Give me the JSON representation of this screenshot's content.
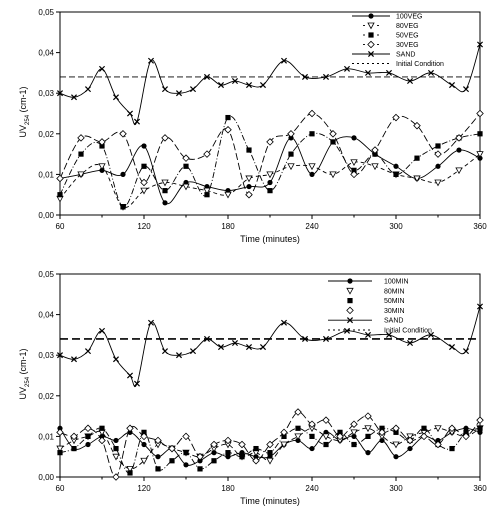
{
  "chart_data": [
    {
      "type": "line",
      "xlabel": "Time (minutes)",
      "ylabel_main": "UV",
      "ylabel_sub": "254",
      "ylabel_unit": " (cm-1)",
      "xticks": [
        60,
        120,
        180,
        240,
        300,
        360
      ],
      "yticks": [
        "0,00",
        "0,01",
        "0,02",
        "0,03",
        "0,04",
        "0,05"
      ],
      "xlim": [
        60,
        360
      ],
      "ylim": [
        0,
        0.05
      ],
      "initial_condition": 0.034,
      "series": [
        {
          "name": "100VEG",
          "marker": "circle",
          "dash": "",
          "x": [
            60,
            75,
            90,
            105,
            120,
            135,
            150,
            165,
            180,
            195,
            210,
            225,
            240,
            255,
            270,
            285,
            300,
            315,
            330,
            345,
            360
          ],
          "values": [
            0.009,
            0.01,
            0.011,
            0.01,
            0.017,
            0.003,
            0.008,
            0.007,
            0.006,
            0.007,
            0.008,
            0.019,
            0.01,
            0.018,
            0.019,
            0.015,
            0.012,
            0.009,
            0.012,
            0.016,
            0.014
          ]
        },
        {
          "name": "80VEG",
          "marker": "triangle",
          "dash": "4,3",
          "x": [
            60,
            75,
            90,
            105,
            120,
            135,
            150,
            165,
            180,
            195,
            210,
            225,
            240,
            255,
            270,
            285,
            300,
            315,
            330,
            345,
            360
          ],
          "values": [
            0.004,
            0.01,
            0.012,
            0.002,
            0.006,
            0.008,
            0.007,
            0.006,
            0.005,
            0.009,
            0.01,
            0.012,
            0.012,
            0.01,
            0.013,
            0.012,
            0.01,
            0.009,
            0.008,
            0.011,
            0.015
          ]
        },
        {
          "name": "50VEG",
          "marker": "square",
          "dash": "6,2,1,2",
          "x": [
            60,
            75,
            90,
            105,
            120,
            135,
            150,
            165,
            180,
            195,
            210,
            225,
            240,
            255,
            270,
            285,
            300,
            315,
            330,
            345,
            360
          ],
          "values": [
            0.005,
            0.015,
            0.017,
            0.002,
            0.012,
            0.006,
            0.012,
            0.005,
            0.024,
            0.016,
            0.006,
            0.015,
            0.02,
            0.018,
            0.011,
            0.015,
            0.01,
            0.014,
            0.017,
            0.019,
            0.02
          ]
        },
        {
          "name": "30VEG",
          "marker": "diamond",
          "dash": "7,3",
          "x": [
            60,
            75,
            90,
            105,
            120,
            135,
            150,
            165,
            180,
            195,
            210,
            225,
            240,
            255,
            270,
            285,
            300,
            315,
            330,
            345,
            360
          ],
          "values": [
            0.009,
            0.019,
            0.018,
            0.02,
            0.008,
            0.019,
            0.014,
            0.015,
            0.021,
            0.005,
            0.018,
            0.02,
            0.025,
            0.02,
            0.01,
            0.016,
            0.024,
            0.022,
            0.015,
            0.019,
            0.025
          ]
        },
        {
          "name": "SAND",
          "marker": "x",
          "dash": "",
          "x": [
            60,
            70,
            80,
            90,
            100,
            110,
            115,
            125,
            135,
            145,
            155,
            165,
            175,
            185,
            195,
            205,
            220,
            235,
            250,
            265,
            280,
            295,
            310,
            325,
            340,
            350,
            360
          ],
          "values": [
            0.03,
            0.029,
            0.031,
            0.036,
            0.029,
            0.025,
            0.023,
            0.038,
            0.031,
            0.03,
            0.031,
            0.034,
            0.032,
            0.033,
            0.032,
            0.032,
            0.038,
            0.034,
            0.034,
            0.036,
            0.035,
            0.035,
            0.033,
            0.035,
            0.032,
            0.031,
            0.042
          ]
        }
      ],
      "legend": [
        "100VEG",
        "80VEG",
        "50VEG",
        "30VEG",
        "SAND",
        "Initial Condition"
      ]
    },
    {
      "type": "line",
      "xlabel": "Time (minutes)",
      "ylabel_main": "UV",
      "ylabel_sub": "254",
      "ylabel_unit": " (cm-1)",
      "xticks": [
        60,
        120,
        180,
        240,
        300,
        360
      ],
      "yticks": [
        "0,00",
        "0,01",
        "0,02",
        "0,03",
        "0,04",
        "0,05"
      ],
      "xlim": [
        60,
        360
      ],
      "ylim": [
        0,
        0.05
      ],
      "initial_condition": 0.034,
      "series": [
        {
          "name": "100MIN",
          "marker": "circle",
          "dash": "",
          "x": [
            60,
            70,
            80,
            90,
            100,
            110,
            120,
            130,
            140,
            150,
            160,
            170,
            180,
            190,
            200,
            210,
            220,
            230,
            240,
            250,
            260,
            270,
            280,
            290,
            300,
            310,
            320,
            330,
            340,
            350,
            360
          ],
          "values": [
            0.012,
            0.007,
            0.008,
            0.01,
            0.009,
            0.011,
            0.008,
            0.005,
            0.007,
            0.003,
            0.004,
            0.006,
            0.005,
            0.006,
            0.005,
            0.005,
            0.008,
            0.009,
            0.007,
            0.011,
            0.009,
            0.01,
            0.006,
            0.009,
            0.005,
            0.007,
            0.01,
            0.009,
            0.011,
            0.012,
            0.011
          ]
        },
        {
          "name": "80MIN",
          "marker": "triangle",
          "dash": "5,3",
          "x": [
            60,
            70,
            80,
            90,
            100,
            110,
            120,
            130,
            140,
            150,
            160,
            170,
            180,
            190,
            200,
            210,
            220,
            230,
            240,
            250,
            260,
            270,
            280,
            290,
            300,
            310,
            320,
            330,
            340,
            350,
            360
          ],
          "values": [
            0.007,
            0.009,
            0.01,
            0.011,
            0.005,
            0.002,
            0.004,
            0.008,
            0.007,
            0.006,
            0.005,
            0.007,
            0.008,
            0.005,
            0.006,
            0.004,
            0.008,
            0.01,
            0.012,
            0.01,
            0.009,
            0.011,
            0.012,
            0.01,
            0.008,
            0.01,
            0.011,
            0.012,
            0.011,
            0.01,
            0.012
          ]
        },
        {
          "name": "50MIN",
          "marker": "square",
          "dash": "6,2,1,2",
          "x": [
            60,
            70,
            80,
            90,
            100,
            110,
            120,
            130,
            140,
            150,
            160,
            170,
            180,
            190,
            200,
            210,
            220,
            230,
            240,
            250,
            260,
            270,
            280,
            290,
            300,
            310,
            320,
            330,
            340,
            350,
            360
          ],
          "values": [
            0.006,
            0.007,
            0.01,
            0.012,
            0.007,
            0.001,
            0.011,
            0.002,
            0.004,
            0.006,
            0.002,
            0.004,
            0.006,
            0.005,
            0.007,
            0.006,
            0.01,
            0.012,
            0.01,
            0.008,
            0.011,
            0.008,
            0.01,
            0.012,
            0.011,
            0.009,
            0.012,
            0.008,
            0.007,
            0.011,
            0.012
          ]
        },
        {
          "name": "30MIN",
          "marker": "diamond",
          "dash": "8,3",
          "x": [
            60,
            70,
            80,
            90,
            100,
            110,
            120,
            130,
            140,
            150,
            160,
            170,
            180,
            190,
            200,
            210,
            220,
            230,
            240,
            250,
            260,
            270,
            280,
            290,
            300,
            310,
            320,
            330,
            340,
            350,
            360
          ],
          "values": [
            0.011,
            0.01,
            0.012,
            0.009,
            0.0,
            0.012,
            0.01,
            0.009,
            0.007,
            0.01,
            0.005,
            0.008,
            0.009,
            0.008,
            0.004,
            0.008,
            0.011,
            0.016,
            0.013,
            0.014,
            0.01,
            0.013,
            0.015,
            0.011,
            0.012,
            0.009,
            0.01,
            0.008,
            0.012,
            0.01,
            0.014
          ]
        },
        {
          "name": "SAND",
          "marker": "x",
          "dash": "",
          "x": [
            60,
            70,
            80,
            90,
            100,
            110,
            115,
            125,
            135,
            145,
            155,
            165,
            175,
            185,
            195,
            205,
            220,
            235,
            250,
            265,
            280,
            295,
            310,
            325,
            340,
            350,
            360
          ],
          "values": [
            0.03,
            0.029,
            0.031,
            0.036,
            0.029,
            0.025,
            0.023,
            0.038,
            0.031,
            0.03,
            0.031,
            0.034,
            0.032,
            0.033,
            0.032,
            0.032,
            0.038,
            0.034,
            0.034,
            0.036,
            0.035,
            0.035,
            0.033,
            0.035,
            0.032,
            0.031,
            0.042
          ]
        }
      ],
      "legend": [
        "100MIN",
        "80MIN",
        "50MIN",
        "30MIN",
        "SAND",
        "Initial Condition"
      ]
    }
  ]
}
